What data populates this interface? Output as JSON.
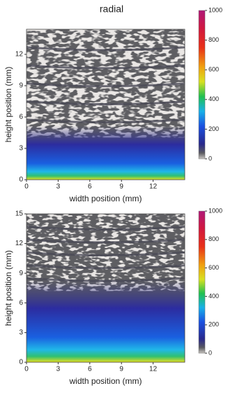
{
  "chart_data": [
    {
      "type": "heatmap",
      "title": "radial",
      "xlabel": "width position (mm)",
      "ylabel": "height position (mm)",
      "xlim": [
        0,
        15
      ],
      "xticks": [
        0,
        3,
        6,
        9,
        12
      ],
      "ylim": [
        0,
        14.4
      ],
      "yticks": [
        0,
        3,
        6,
        9,
        12
      ],
      "zlim": [
        0,
        1000
      ],
      "zticks": [
        0,
        200,
        400,
        600,
        800,
        1000
      ]
    },
    {
      "type": "heatmap",
      "xlabel": "width position (mm)",
      "ylabel": "height position (mm)",
      "xlim": [
        0,
        15
      ],
      "xticks": [
        0,
        3,
        6,
        9,
        12
      ],
      "ylim": [
        0,
        15
      ],
      "yticks": [
        0,
        3,
        6,
        9,
        12,
        15
      ],
      "zlim": [
        0,
        1000
      ],
      "zticks": [
        0,
        200,
        400,
        600,
        800,
        1000
      ]
    }
  ]
}
